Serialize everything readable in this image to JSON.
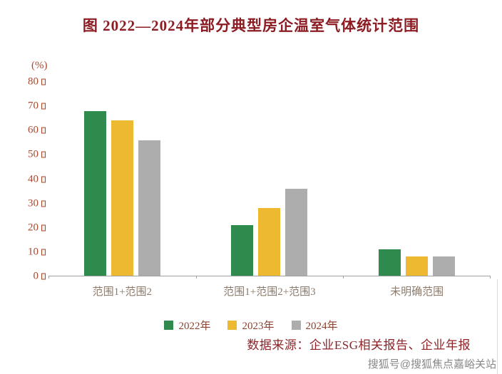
{
  "title": "图  2022—2024年部分典型房企温室气体统计范围",
  "chart_data": {
    "type": "bar",
    "title": "2022—2024年部分典型房企温室气体统计范围",
    "unit_label": "(%)",
    "xlabel": "",
    "ylabel": "(%)",
    "ylim": [
      0,
      80
    ],
    "ytick_step": 10,
    "yticks": [
      0,
      10,
      20,
      30,
      40,
      50,
      60,
      70,
      80
    ],
    "grid": false,
    "legend_position": "bottom",
    "categories": [
      "范围1+范围2",
      "范围1+范围2+范围3",
      "未明确范围"
    ],
    "series": [
      {
        "name": "2022年",
        "color": "#2f8a4d",
        "values": [
          68,
          21,
          11
        ]
      },
      {
        "name": "2023年",
        "color": "#ecb930",
        "values": [
          64,
          28,
          8
        ]
      },
      {
        "name": "2024年",
        "color": "#adadad",
        "values": [
          56,
          36,
          8
        ]
      }
    ]
  },
  "source": "数据来源：企业ESG相关报告、企业年报",
  "watermark": "搜狐号@搜狐焦点嘉峪关站",
  "colors": {
    "title_text": "#8c1b22",
    "axis_tick_text": "#a7492f",
    "category_text": "#8d7b6b",
    "legend_text": "#8a4431",
    "source_text": "#8f2328",
    "axis_line": "#9f9f9f",
    "background": "#ffffff"
  }
}
